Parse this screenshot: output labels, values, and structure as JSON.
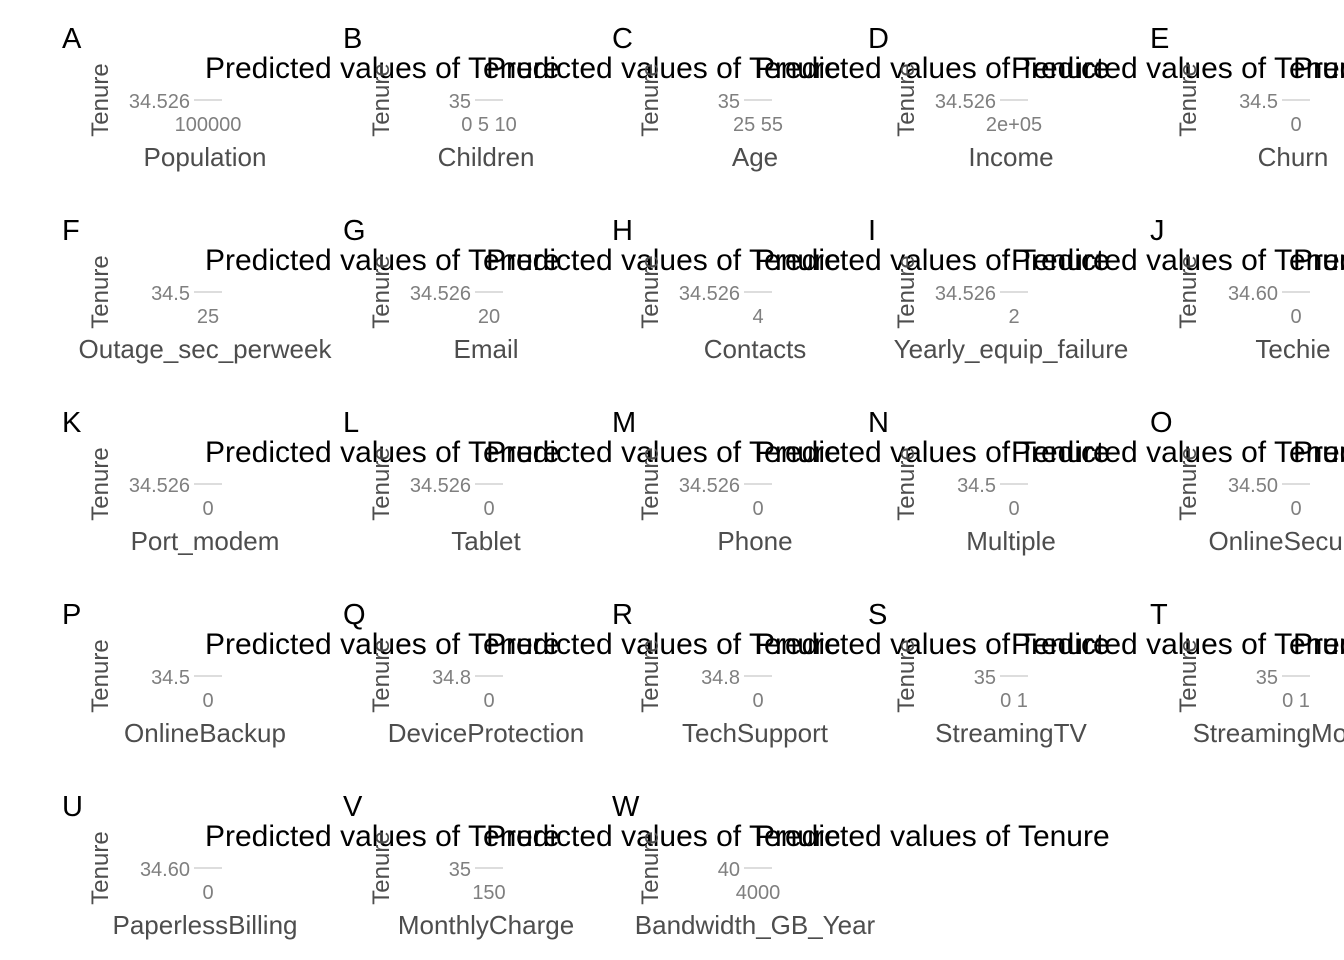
{
  "panels": [
    {
      "tag": "A",
      "title": "Predicted values of Tenure",
      "ylabel": "Tenure",
      "xlabel": "Population",
      "yticks": [
        "34.526"
      ],
      "xticks": [
        "100000"
      ]
    },
    {
      "tag": "B",
      "title": "Predicted values of Tenure",
      "ylabel": "Tenure",
      "xlabel": "Children",
      "yticks": [
        "35"
      ],
      "xticks": [
        "0 5 10"
      ]
    },
    {
      "tag": "C",
      "title": "Predicted values of Tenure",
      "ylabel": "Tenure",
      "xlabel": "Age",
      "yticks": [
        "35"
      ],
      "xticks": [
        "25 55"
      ]
    },
    {
      "tag": "D",
      "title": "Predicted values of Tenure",
      "ylabel": "Tenure",
      "xlabel": "Income",
      "yticks": [
        "34.526"
      ],
      "xticks": [
        "2e+05"
      ]
    },
    {
      "tag": "E",
      "title": "Predicted values of Tenure",
      "ylabel": "Tenure",
      "xlabel": "Churn",
      "yticks": [
        "34.5"
      ],
      "xticks": [
        "0"
      ]
    },
    {
      "tag": "F",
      "title": "Predicted values of Tenure",
      "ylabel": "Tenure",
      "xlabel": "Outage_sec_perweek",
      "yticks": [
        "34.5"
      ],
      "xticks": [
        "25"
      ]
    },
    {
      "tag": "G",
      "title": "Predicted values of Tenure",
      "ylabel": "Tenure",
      "xlabel": "Email",
      "yticks": [
        "34.526"
      ],
      "xticks": [
        "20"
      ]
    },
    {
      "tag": "H",
      "title": "Predicted values of Tenure",
      "ylabel": "Tenure",
      "xlabel": "Contacts",
      "yticks": [
        "34.526"
      ],
      "xticks": [
        "4"
      ]
    },
    {
      "tag": "I",
      "title": "Predicted values of Tenure",
      "ylabel": "Tenure",
      "xlabel": "Yearly_equip_failure",
      "yticks": [
        "34.526"
      ],
      "xticks": [
        "2"
      ]
    },
    {
      "tag": "J",
      "title": "Predicted values of Tenure",
      "ylabel": "Tenure",
      "xlabel": "Techie",
      "yticks": [
        "34.60"
      ],
      "xticks": [
        "0"
      ]
    },
    {
      "tag": "K",
      "title": "Predicted values of Tenure",
      "ylabel": "Tenure",
      "xlabel": "Port_modem",
      "yticks": [
        "34.526"
      ],
      "xticks": [
        "0"
      ]
    },
    {
      "tag": "L",
      "title": "Predicted values of Tenure",
      "ylabel": "Tenure",
      "xlabel": "Tablet",
      "yticks": [
        "34.526"
      ],
      "xticks": [
        "0"
      ]
    },
    {
      "tag": "M",
      "title": "Predicted values of Tenure",
      "ylabel": "Tenure",
      "xlabel": "Phone",
      "yticks": [
        "34.526"
      ],
      "xticks": [
        "0"
      ]
    },
    {
      "tag": "N",
      "title": "Predicted values of Tenure",
      "ylabel": "Tenure",
      "xlabel": "Multiple",
      "yticks": [
        "34.5"
      ],
      "xticks": [
        "0"
      ]
    },
    {
      "tag": "O",
      "title": "Predicted values of Tenure",
      "ylabel": "Tenure",
      "xlabel": "OnlineSecurity",
      "yticks": [
        "34.50"
      ],
      "xticks": [
        "0"
      ]
    },
    {
      "tag": "P",
      "title": "Predicted values of Tenure",
      "ylabel": "Tenure",
      "xlabel": "OnlineBackup",
      "yticks": [
        "34.5"
      ],
      "xticks": [
        "0"
      ]
    },
    {
      "tag": "Q",
      "title": "Predicted values of Tenure",
      "ylabel": "Tenure",
      "xlabel": "DeviceProtection",
      "yticks": [
        "34.8"
      ],
      "xticks": [
        "0"
      ]
    },
    {
      "tag": "R",
      "title": "Predicted values of Tenure",
      "ylabel": "Tenure",
      "xlabel": "TechSupport",
      "yticks": [
        "34.8"
      ],
      "xticks": [
        "0"
      ]
    },
    {
      "tag": "S",
      "title": "Predicted values of Tenure",
      "ylabel": "Tenure",
      "xlabel": "StreamingTV",
      "yticks": [
        "35"
      ],
      "xticks": [
        "0 1"
      ]
    },
    {
      "tag": "T",
      "title": "Predicted values of Tenure",
      "ylabel": "Tenure",
      "xlabel": "StreamingMovies",
      "yticks": [
        "35"
      ],
      "xticks": [
        "0 1"
      ]
    },
    {
      "tag": "U",
      "title": "Predicted values of Tenure",
      "ylabel": "Tenure",
      "xlabel": "PaperlessBilling",
      "yticks": [
        "34.60"
      ],
      "xticks": [
        "0"
      ]
    },
    {
      "tag": "V",
      "title": "Predicted values of Tenure",
      "ylabel": "Tenure",
      "xlabel": "MonthlyCharge",
      "yticks": [
        "35"
      ],
      "xticks": [
        "150"
      ]
    },
    {
      "tag": "W",
      "title": "Predicted values of Tenure",
      "ylabel": "Tenure",
      "xlabel": "Bandwidth_GB_Year",
      "yticks": [
        "40"
      ],
      "xticks": [
        "4000"
      ]
    }
  ]
}
